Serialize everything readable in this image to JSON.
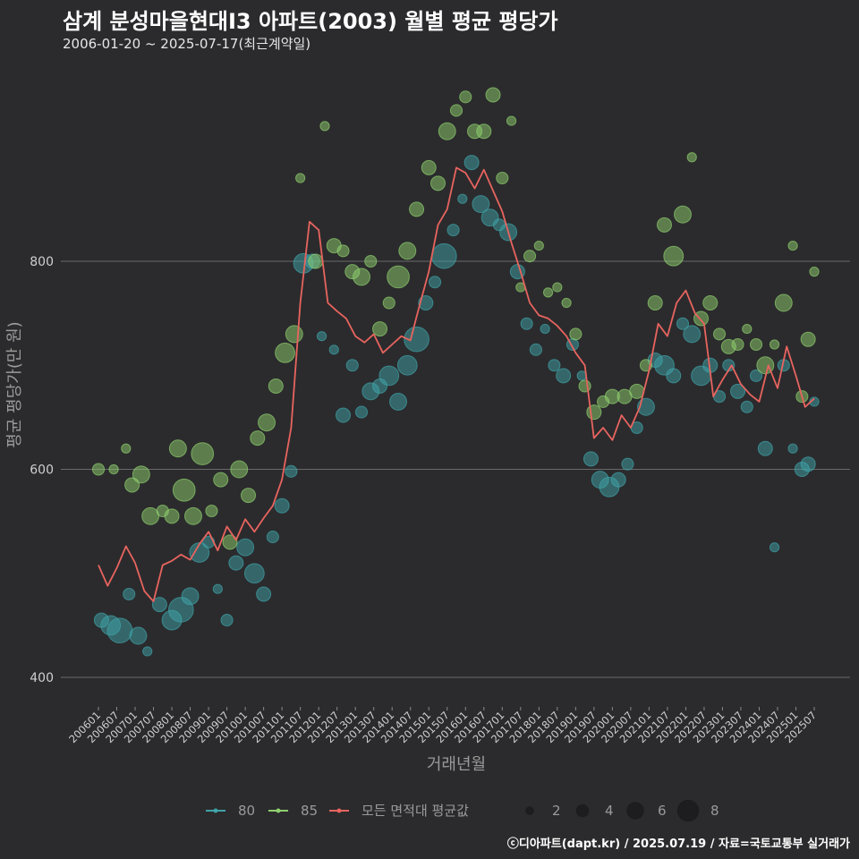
{
  "header": {
    "title": "삼계 분성마을현대I3 아파트(2003) 월별 평균 평당가",
    "subtitle": "2006-01-20 ~ 2025-07-17(최근계약일)"
  },
  "footer": {
    "credit": "ⓒ디아파트(dapt.kr) / 2025.07.19 / 자료=국토교통부 실거래가"
  },
  "colors": {
    "background": "#2b2b2d",
    "grid": "#6a6a6a",
    "area80": "#3fa3a8",
    "area85": "#8fcf6e",
    "avg_line": "#e8645f"
  },
  "chart_data": {
    "type": "line",
    "title": "삼계 분성마을현대I3 아파트(2003) 월별 평균 평당가",
    "xlabel": "거래년월",
    "ylabel": "평균 평당가(만 원)",
    "ylim": [
      370,
      1000
    ],
    "yticks": [
      400,
      600,
      800
    ],
    "xlim": [
      "2006-01",
      "2025-07"
    ],
    "xticks": [
      "200601",
      "200607",
      "200701",
      "200707",
      "200801",
      "200807",
      "200901",
      "200907",
      "201001",
      "201007",
      "201101",
      "201107",
      "201201",
      "201207",
      "201301",
      "201307",
      "201401",
      "201407",
      "201501",
      "201507",
      "201601",
      "201607",
      "201701",
      "201707",
      "201801",
      "201807",
      "201901",
      "201907",
      "202001",
      "202007",
      "202101",
      "202107",
      "202201",
      "202207",
      "202301",
      "202307",
      "202401",
      "202407",
      "202501",
      "202507"
    ],
    "grid": "horizontal",
    "legend_position": "bottom",
    "legend": {
      "series_entries": [
        "80",
        "85",
        "모든 면적대 평균값"
      ],
      "size_entries": [
        2,
        4,
        6,
        8
      ]
    },
    "series": [
      {
        "name": "모든 면적대 평균값",
        "kind": "line",
        "x": [
          "2006-01",
          "2006-04",
          "2006-07",
          "2006-10",
          "2007-01",
          "2007-04",
          "2007-07",
          "2007-10",
          "2008-01",
          "2008-04",
          "2008-07",
          "2008-10",
          "2009-01",
          "2009-04",
          "2009-07",
          "2009-10",
          "2010-01",
          "2010-04",
          "2010-07",
          "2010-10",
          "2011-01",
          "2011-04",
          "2011-07",
          "2011-10",
          "2012-01",
          "2012-04",
          "2012-07",
          "2012-10",
          "2013-01",
          "2013-04",
          "2013-07",
          "2013-10",
          "2014-01",
          "2014-04",
          "2014-07",
          "2014-10",
          "2015-01",
          "2015-04",
          "2015-07",
          "2015-10",
          "2016-01",
          "2016-04",
          "2016-07",
          "2016-10",
          "2017-01",
          "2017-04",
          "2017-07",
          "2017-10",
          "2018-01",
          "2018-04",
          "2018-07",
          "2018-10",
          "2019-01",
          "2019-04",
          "2019-07",
          "2019-10",
          "2020-01",
          "2020-04",
          "2020-07",
          "2020-10",
          "2021-01",
          "2021-04",
          "2021-07",
          "2021-10",
          "2022-01",
          "2022-04",
          "2022-07",
          "2022-10",
          "2023-01",
          "2023-04",
          "2023-07",
          "2023-10",
          "2024-01",
          "2024-04",
          "2024-07",
          "2024-10",
          "2025-01",
          "2025-04",
          "2025-07"
        ],
        "values": [
          508,
          488,
          505,
          526,
          510,
          483,
          473,
          508,
          512,
          518,
          513,
          528,
          540,
          522,
          545,
          532,
          552,
          540,
          553,
          565,
          590,
          640,
          760,
          838,
          830,
          760,
          752,
          745,
          728,
          722,
          730,
          712,
          720,
          728,
          724,
          758,
          790,
          835,
          850,
          890,
          885,
          870,
          888,
          868,
          848,
          818,
          790,
          760,
          748,
          745,
          738,
          728,
          712,
          700,
          630,
          640,
          628,
          652,
          640,
          660,
          695,
          740,
          728,
          760,
          772,
          750,
          740,
          670,
          686,
          700,
          682,
          672,
          665,
          700,
          678,
          718,
          690,
          660,
          668
        ]
      },
      {
        "name": "80",
        "kind": "bubble",
        "points": [
          {
            "x": "2006-02",
            "y": 455,
            "size": 4
          },
          {
            "x": "2006-05",
            "y": 450,
            "size": 6
          },
          {
            "x": "2006-08",
            "y": 445,
            "size": 8
          },
          {
            "x": "2006-11",
            "y": 480,
            "size": 3
          },
          {
            "x": "2007-02",
            "y": 440,
            "size": 5
          },
          {
            "x": "2007-05",
            "y": 425,
            "size": 2
          },
          {
            "x": "2007-09",
            "y": 470,
            "size": 4
          },
          {
            "x": "2008-01",
            "y": 455,
            "size": 6
          },
          {
            "x": "2008-04",
            "y": 465,
            "size": 8
          },
          {
            "x": "2008-07",
            "y": 478,
            "size": 5
          },
          {
            "x": "2008-10",
            "y": 520,
            "size": 6
          },
          {
            "x": "2009-01",
            "y": 530,
            "size": 3
          },
          {
            "x": "2009-04",
            "y": 485,
            "size": 2
          },
          {
            "x": "2009-07",
            "y": 455,
            "size": 3
          },
          {
            "x": "2009-10",
            "y": 510,
            "size": 4
          },
          {
            "x": "2010-01",
            "y": 525,
            "size": 5
          },
          {
            "x": "2010-04",
            "y": 500,
            "size": 6
          },
          {
            "x": "2010-07",
            "y": 480,
            "size": 4
          },
          {
            "x": "2010-10",
            "y": 535,
            "size": 3
          },
          {
            "x": "2011-01",
            "y": 565,
            "size": 4
          },
          {
            "x": "2011-04",
            "y": 598,
            "size": 3
          },
          {
            "x": "2011-08",
            "y": 798,
            "size": 6
          },
          {
            "x": "2011-11",
            "y": 800,
            "size": 4
          },
          {
            "x": "2012-02",
            "y": 728,
            "size": 2
          },
          {
            "x": "2012-06",
            "y": 715,
            "size": 2
          },
          {
            "x": "2012-09",
            "y": 652,
            "size": 4
          },
          {
            "x": "2012-12",
            "y": 700,
            "size": 3
          },
          {
            "x": "2013-03",
            "y": 655,
            "size": 3
          },
          {
            "x": "2013-06",
            "y": 675,
            "size": 5
          },
          {
            "x": "2013-09",
            "y": 680,
            "size": 4
          },
          {
            "x": "2013-12",
            "y": 690,
            "size": 6
          },
          {
            "x": "2014-03",
            "y": 665,
            "size": 5
          },
          {
            "x": "2014-06",
            "y": 700,
            "size": 6
          },
          {
            "x": "2014-09",
            "y": 725,
            "size": 8
          },
          {
            "x": "2014-12",
            "y": 760,
            "size": 4
          },
          {
            "x": "2015-03",
            "y": 780,
            "size": 3
          },
          {
            "x": "2015-06",
            "y": 805,
            "size": 8
          },
          {
            "x": "2015-09",
            "y": 830,
            "size": 3
          },
          {
            "x": "2015-12",
            "y": 860,
            "size": 2
          },
          {
            "x": "2016-03",
            "y": 895,
            "size": 4
          },
          {
            "x": "2016-06",
            "y": 855,
            "size": 5
          },
          {
            "x": "2016-09",
            "y": 842,
            "size": 5
          },
          {
            "x": "2016-12",
            "y": 835,
            "size": 3
          },
          {
            "x": "2017-03",
            "y": 828,
            "size": 5
          },
          {
            "x": "2017-06",
            "y": 790,
            "size": 4
          },
          {
            "x": "2017-09",
            "y": 740,
            "size": 3
          },
          {
            "x": "2017-12",
            "y": 715,
            "size": 3
          },
          {
            "x": "2018-03",
            "y": 735,
            "size": 2
          },
          {
            "x": "2018-06",
            "y": 700,
            "size": 3
          },
          {
            "x": "2018-09",
            "y": 690,
            "size": 4
          },
          {
            "x": "2018-12",
            "y": 720,
            "size": 3
          },
          {
            "x": "2019-03",
            "y": 690,
            "size": 2
          },
          {
            "x": "2019-06",
            "y": 610,
            "size": 4
          },
          {
            "x": "2019-09",
            "y": 590,
            "size": 5
          },
          {
            "x": "2019-12",
            "y": 583,
            "size": 6
          },
          {
            "x": "2020-03",
            "y": 590,
            "size": 4
          },
          {
            "x": "2020-06",
            "y": 605,
            "size": 3
          },
          {
            "x": "2020-09",
            "y": 640,
            "size": 3
          },
          {
            "x": "2020-12",
            "y": 660,
            "size": 5
          },
          {
            "x": "2021-03",
            "y": 705,
            "size": 4
          },
          {
            "x": "2021-06",
            "y": 700,
            "size": 6
          },
          {
            "x": "2021-09",
            "y": 690,
            "size": 4
          },
          {
            "x": "2021-12",
            "y": 740,
            "size": 3
          },
          {
            "x": "2022-03",
            "y": 730,
            "size": 5
          },
          {
            "x": "2022-06",
            "y": 690,
            "size": 6
          },
          {
            "x": "2022-09",
            "y": 700,
            "size": 4
          },
          {
            "x": "2022-12",
            "y": 670,
            "size": 3
          },
          {
            "x": "2023-03",
            "y": 700,
            "size": 3
          },
          {
            "x": "2023-06",
            "y": 675,
            "size": 4
          },
          {
            "x": "2023-09",
            "y": 660,
            "size": 3
          },
          {
            "x": "2023-12",
            "y": 690,
            "size": 3
          },
          {
            "x": "2024-03",
            "y": 620,
            "size": 4
          },
          {
            "x": "2024-06",
            "y": 525,
            "size": 2
          },
          {
            "x": "2024-09",
            "y": 700,
            "size": 3
          },
          {
            "x": "2024-12",
            "y": 620,
            "size": 2
          },
          {
            "x": "2025-03",
            "y": 600,
            "size": 4
          },
          {
            "x": "2025-05",
            "y": 605,
            "size": 4
          },
          {
            "x": "2025-07",
            "y": 665,
            "size": 2
          }
        ]
      },
      {
        "name": "85",
        "kind": "bubble",
        "points": [
          {
            "x": "2006-01",
            "y": 600,
            "size": 3
          },
          {
            "x": "2006-06",
            "y": 600,
            "size": 2
          },
          {
            "x": "2006-10",
            "y": 620,
            "size": 2
          },
          {
            "x": "2006-12",
            "y": 585,
            "size": 4
          },
          {
            "x": "2007-03",
            "y": 595,
            "size": 5
          },
          {
            "x": "2007-06",
            "y": 555,
            "size": 5
          },
          {
            "x": "2007-10",
            "y": 560,
            "size": 3
          },
          {
            "x": "2008-01",
            "y": 555,
            "size": 4
          },
          {
            "x": "2008-03",
            "y": 620,
            "size": 5
          },
          {
            "x": "2008-05",
            "y": 580,
            "size": 7
          },
          {
            "x": "2008-08",
            "y": 555,
            "size": 5
          },
          {
            "x": "2008-11",
            "y": 615,
            "size": 7
          },
          {
            "x": "2009-02",
            "y": 560,
            "size": 3
          },
          {
            "x": "2009-05",
            "y": 590,
            "size": 4
          },
          {
            "x": "2009-08",
            "y": 530,
            "size": 4
          },
          {
            "x": "2009-11",
            "y": 600,
            "size": 5
          },
          {
            "x": "2010-02",
            "y": 575,
            "size": 4
          },
          {
            "x": "2010-05",
            "y": 630,
            "size": 4
          },
          {
            "x": "2010-08",
            "y": 645,
            "size": 5
          },
          {
            "x": "2010-11",
            "y": 680,
            "size": 4
          },
          {
            "x": "2011-02",
            "y": 712,
            "size": 6
          },
          {
            "x": "2011-05",
            "y": 730,
            "size": 5
          },
          {
            "x": "2011-07",
            "y": 880,
            "size": 2
          },
          {
            "x": "2011-12",
            "y": 800,
            "size": 4
          },
          {
            "x": "2012-03",
            "y": 930,
            "size": 2
          },
          {
            "x": "2012-06",
            "y": 815,
            "size": 4
          },
          {
            "x": "2012-09",
            "y": 810,
            "size": 3
          },
          {
            "x": "2012-12",
            "y": 790,
            "size": 4
          },
          {
            "x": "2013-03",
            "y": 785,
            "size": 5
          },
          {
            "x": "2013-06",
            "y": 800,
            "size": 3
          },
          {
            "x": "2013-09",
            "y": 735,
            "size": 4
          },
          {
            "x": "2013-12",
            "y": 760,
            "size": 3
          },
          {
            "x": "2014-03",
            "y": 785,
            "size": 7
          },
          {
            "x": "2014-06",
            "y": 810,
            "size": 5
          },
          {
            "x": "2014-09",
            "y": 850,
            "size": 4
          },
          {
            "x": "2015-01",
            "y": 890,
            "size": 4
          },
          {
            "x": "2015-04",
            "y": 875,
            "size": 4
          },
          {
            "x": "2015-07",
            "y": 925,
            "size": 5
          },
          {
            "x": "2015-10",
            "y": 945,
            "size": 3
          },
          {
            "x": "2016-01",
            "y": 958,
            "size": 3
          },
          {
            "x": "2016-04",
            "y": 925,
            "size": 4
          },
          {
            "x": "2016-07",
            "y": 925,
            "size": 4
          },
          {
            "x": "2016-10",
            "y": 960,
            "size": 4
          },
          {
            "x": "2017-01",
            "y": 880,
            "size": 3
          },
          {
            "x": "2017-04",
            "y": 935,
            "size": 2
          },
          {
            "x": "2017-07",
            "y": 775,
            "size": 2
          },
          {
            "x": "2017-10",
            "y": 805,
            "size": 3
          },
          {
            "x": "2018-01",
            "y": 815,
            "size": 2
          },
          {
            "x": "2018-04",
            "y": 770,
            "size": 2
          },
          {
            "x": "2018-07",
            "y": 775,
            "size": 2
          },
          {
            "x": "2018-10",
            "y": 760,
            "size": 2
          },
          {
            "x": "2019-01",
            "y": 730,
            "size": 3
          },
          {
            "x": "2019-04",
            "y": 680,
            "size": 3
          },
          {
            "x": "2019-07",
            "y": 655,
            "size": 4
          },
          {
            "x": "2019-10",
            "y": 665,
            "size": 3
          },
          {
            "x": "2020-01",
            "y": 670,
            "size": 4
          },
          {
            "x": "2020-05",
            "y": 670,
            "size": 4
          },
          {
            "x": "2020-09",
            "y": 675,
            "size": 4
          },
          {
            "x": "2020-12",
            "y": 700,
            "size": 3
          },
          {
            "x": "2021-03",
            "y": 760,
            "size": 4
          },
          {
            "x": "2021-06",
            "y": 835,
            "size": 4
          },
          {
            "x": "2021-09",
            "y": 805,
            "size": 6
          },
          {
            "x": "2021-12",
            "y": 845,
            "size": 5
          },
          {
            "x": "2022-03",
            "y": 900,
            "size": 2
          },
          {
            "x": "2022-06",
            "y": 745,
            "size": 4
          },
          {
            "x": "2022-09",
            "y": 760,
            "size": 4
          },
          {
            "x": "2022-12",
            "y": 730,
            "size": 3
          },
          {
            "x": "2023-03",
            "y": 718,
            "size": 4
          },
          {
            "x": "2023-06",
            "y": 720,
            "size": 3
          },
          {
            "x": "2023-09",
            "y": 735,
            "size": 2
          },
          {
            "x": "2023-12",
            "y": 720,
            "size": 3
          },
          {
            "x": "2024-03",
            "y": 700,
            "size": 5
          },
          {
            "x": "2024-06",
            "y": 720,
            "size": 2
          },
          {
            "x": "2024-09",
            "y": 760,
            "size": 5
          },
          {
            "x": "2024-12",
            "y": 815,
            "size": 2
          },
          {
            "x": "2025-03",
            "y": 670,
            "size": 3
          },
          {
            "x": "2025-05",
            "y": 725,
            "size": 4
          },
          {
            "x": "2025-07",
            "y": 790,
            "size": 2
          }
        ]
      }
    ]
  }
}
